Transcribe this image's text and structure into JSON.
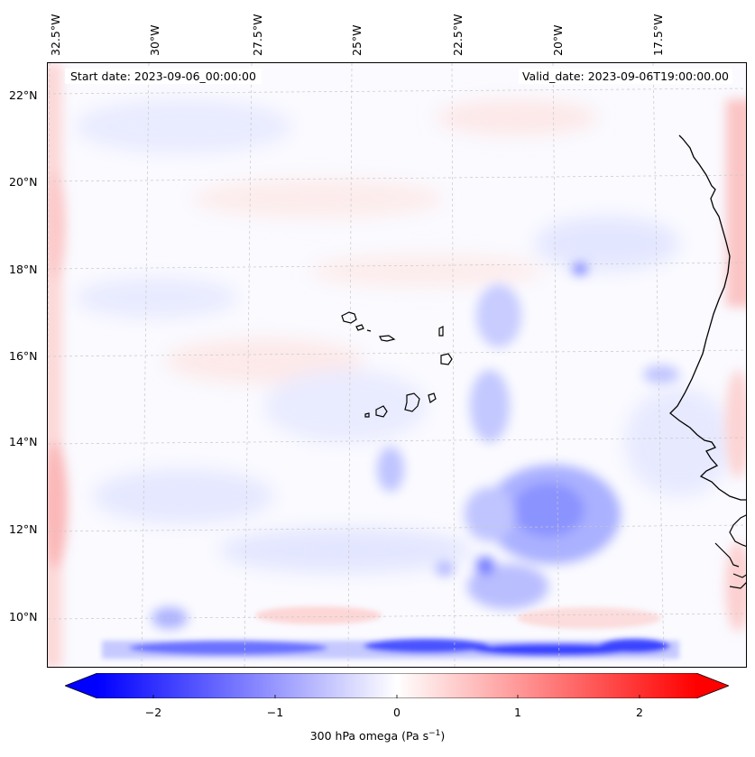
{
  "header": {
    "start_date": "Start date: 2023-09-06_00:00:00",
    "valid_date": "Valid_date: 2023-09-06T19:00:00.00"
  },
  "axes": {
    "longitude_labels": [
      "32.5°W",
      "30°W",
      "27.5°W",
      "25°W",
      "22.5°W",
      "20°W",
      "17.5°W"
    ],
    "latitude_labels": [
      "22°N",
      "20°N",
      "18°N",
      "16°N",
      "14°N",
      "12°N",
      "10°N"
    ],
    "gridlines": true
  },
  "colorbar": {
    "ticks": [
      "−2",
      "−1",
      "0",
      "1",
      "2"
    ],
    "label_main": "300 hPa omega (Pa s",
    "label_exp": "−1",
    "label_close": ")",
    "range": [
      -2.7,
      2.7
    ],
    "colormap": "bwr",
    "extend": "both",
    "color_min": "#0000ff",
    "color_mid": "#ffffff",
    "color_max": "#ff0000"
  },
  "map": {
    "field": "300 hPa omega",
    "features": [
      "west-africa-coastline",
      "cape-verde-islands"
    ]
  }
}
